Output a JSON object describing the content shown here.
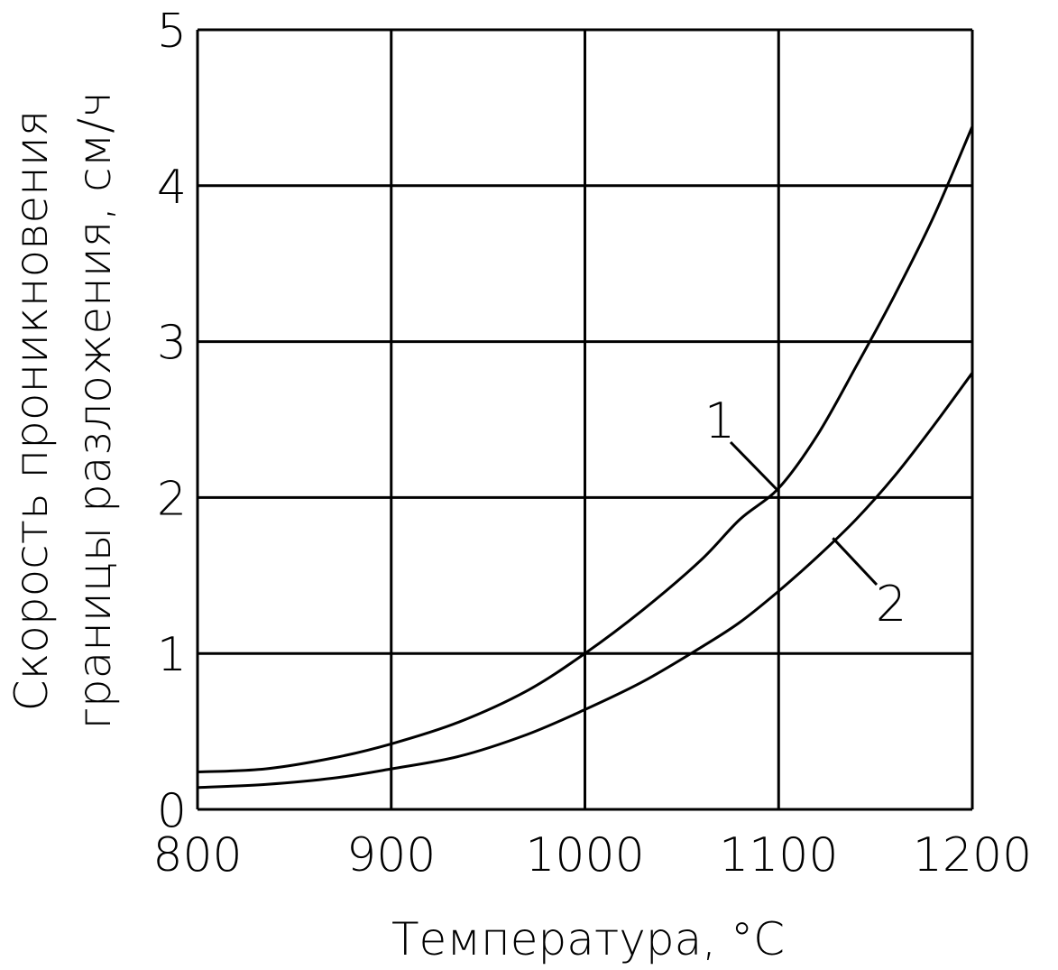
{
  "chart_data": {
    "type": "line",
    "xlabel": "Температура, °С",
    "ylabel_lines": [
      "Скорость проникновения",
      "границы разложения, см/ч"
    ],
    "xlim": [
      800,
      1200
    ],
    "ylim": [
      0,
      5
    ],
    "x_ticks": [
      800,
      900,
      1000,
      1100,
      1200
    ],
    "y_ticks": [
      0,
      1,
      2,
      3,
      4,
      5
    ],
    "x_tick_labels": [
      "800",
      "900",
      "1000",
      "1100",
      "1200"
    ],
    "y_tick_labels": [
      "0",
      "1",
      "2",
      "3",
      "4",
      "5"
    ],
    "grid": true,
    "series": [
      {
        "name": "1",
        "x": [
          800,
          835,
          870,
          900,
          935,
          970,
          1000,
          1030,
          1060,
          1080,
          1100,
          1120,
          1140,
          1160,
          1180,
          1200
        ],
        "y": [
          0.24,
          0.26,
          0.33,
          0.42,
          0.56,
          0.76,
          1.0,
          1.28,
          1.6,
          1.86,
          2.06,
          2.4,
          2.84,
          3.3,
          3.8,
          4.38
        ]
      },
      {
        "name": "2",
        "x": [
          800,
          835,
          870,
          900,
          935,
          970,
          1000,
          1030,
          1060,
          1080,
          1100,
          1120,
          1140,
          1160,
          1180,
          1200
        ],
        "y": [
          0.14,
          0.16,
          0.2,
          0.26,
          0.34,
          0.48,
          0.64,
          0.82,
          1.04,
          1.2,
          1.4,
          1.62,
          1.86,
          2.14,
          2.46,
          2.8
        ]
      }
    ],
    "annotations": [
      "1",
      "2"
    ]
  }
}
